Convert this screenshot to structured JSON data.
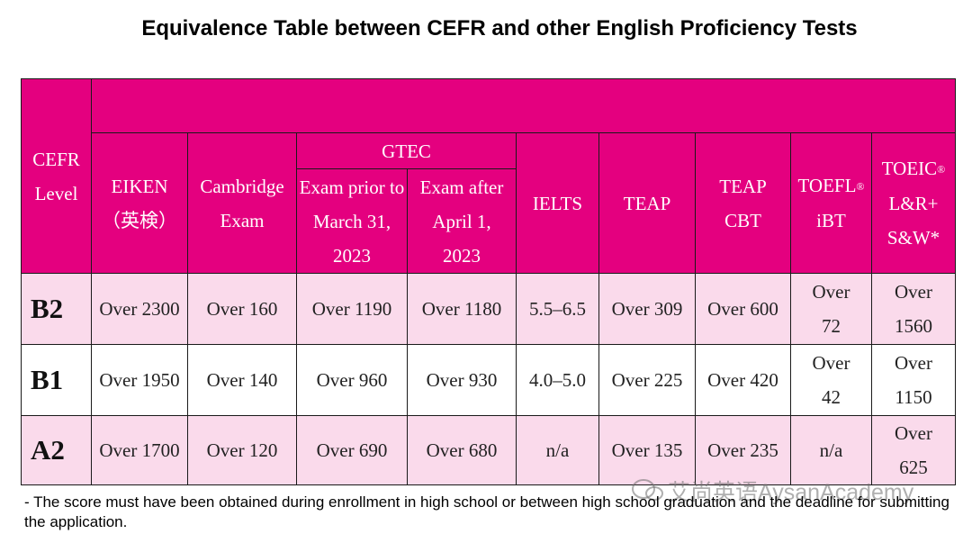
{
  "header": {
    "title": "Equivalence Table between CEFR and other English Proficiency Tests"
  },
  "table": {
    "header": {
      "cefr": "CEFR\nLevel",
      "eiken": "EIKEN\n（英検）",
      "cambridge": "Cambridge\nExam",
      "gtec": "GTEC",
      "gtec_prior": "Exam prior to\nMarch 31,\n2023",
      "gtec_after": "Exam after\nApril 1,\n2023",
      "ielts": "IELTS",
      "teap": "TEAP",
      "teap_cbt": "TEAP\nCBT",
      "toefl": {
        "name": "TOEFL",
        "mark": "®",
        "rest": "iBT"
      },
      "toeic": {
        "name": "TOEIC",
        "mark": "®",
        "rest": "L&R+\nS&W*"
      }
    },
    "rows": [
      [
        "B2",
        "Over 2300",
        "Over 160",
        "Over 1190",
        "Over 1180",
        "5.5–6.5",
        "Over 309",
        "Over 600",
        "Over 72",
        "Over 1560"
      ],
      [
        "B1",
        "Over 1950",
        "Over 140",
        "Over 960",
        "Over 930",
        "4.0–5.0",
        "Over 225",
        "Over 420",
        "Over 42",
        "Over 1150"
      ],
      [
        "A2",
        "Over 1700",
        "Over 120",
        "Over 690",
        "Over 680",
        "n/a",
        "Over 135",
        "Over 235",
        "n/a",
        "Over 625"
      ]
    ]
  },
  "footnote": "- The score must have been obtained during enrollment in high school or between high school graduation and the deadline for submitting the application.",
  "watermark": "艾尚英语AysanAcademy"
}
